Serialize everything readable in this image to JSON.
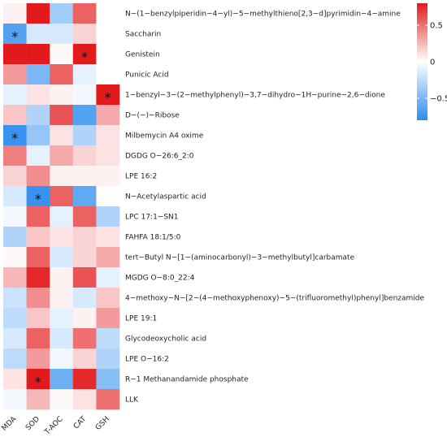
{
  "chart_data": {
    "type": "heatmap",
    "title": "",
    "xlabel": "",
    "ylabel": "",
    "columns": [
      "MDA",
      "SOD",
      "T-AOC",
      "CAT",
      "GSH"
    ],
    "rows": [
      "N−(1−benzylpiperidin−4−yl)−5−methylthieno[2,3−d]pyrimidin−4−amine",
      "Saccharin",
      "Genistein",
      "Punicic Acid",
      "1−benzyl−3−(2−methylphenyl)−3,7−dihydro−1H−purine−2,6−dione",
      "D−(−)−Ribose",
      "Milbemycin A4 oxime",
      "DGDG O−26:6_2:0",
      "LPE 16:2",
      "N−Acetylaspartic acid",
      "LPC 17:1−SN1",
      "FAHFA 18:1/5:0",
      "tert−Butyl N−[1−(aminocarbonyl)−3−methylbutyl]carbamate",
      "MGDG O−8:0_22:4",
      "4−methoxy−N−[2−(4−methoxyphenoxy)−5−(trifluoromethyl)phenyl]benzamide",
      "LPE 19:1",
      "Glycodeoxycholic acid",
      "LPE O−16:2",
      "R−1 Methanandamide phosphate",
      "LLK"
    ],
    "values": [
      [
        0.05,
        0.85,
        -0.35,
        0.55,
        0.0
      ],
      [
        -0.65,
        -0.15,
        -0.15,
        0.15,
        0.0
      ],
      [
        0.85,
        0.8,
        0.02,
        0.9,
        0.0
      ],
      [
        0.35,
        -0.5,
        0.55,
        -0.1,
        0.0
      ],
      [
        -0.1,
        0.1,
        0.05,
        -0.05,
        0.9
      ],
      [
        0.2,
        -0.3,
        0.6,
        -0.65,
        0.3
      ],
      [
        -0.75,
        -0.4,
        0.1,
        -0.3,
        0.1
      ],
      [
        0.45,
        -0.1,
        0.3,
        0.15,
        0.1
      ],
      [
        0.15,
        0.4,
        0.05,
        0.05,
        0.05
      ],
      [
        -0.15,
        -0.75,
        0.55,
        -0.6,
        0.0
      ],
      [
        -0.05,
        0.55,
        -0.1,
        0.55,
        -0.3
      ],
      [
        -0.3,
        0.2,
        0.1,
        0.15,
        0.1
      ],
      [
        0.02,
        0.55,
        -0.15,
        0.15,
        0.3
      ],
      [
        0.25,
        0.75,
        0.05,
        0.6,
        -0.1
      ],
      [
        -0.2,
        0.4,
        0.05,
        -0.15,
        0.2
      ],
      [
        -0.25,
        0.2,
        -0.1,
        0.05,
        0.35
      ],
      [
        -0.15,
        0.55,
        -0.15,
        0.5,
        -0.25
      ],
      [
        -0.25,
        0.35,
        -0.05,
        0.15,
        -0.3
      ],
      [
        0.1,
        0.9,
        -0.55,
        0.75,
        -0.45
      ],
      [
        -0.05,
        0.25,
        0.02,
        0.1,
        0.5
      ]
    ],
    "significance": [
      [
        1,
        0
      ],
      [
        4,
        4
      ],
      [
        2,
        3
      ],
      [
        6,
        0
      ],
      [
        9,
        1
      ],
      [
        18,
        1
      ]
    ],
    "significance_marker": "*",
    "color_scale": {
      "low": "#2b8cef",
      "mid": "#ffffff",
      "high": "#e31a1c",
      "min": -0.8,
      "max": 0.8,
      "ticks": [
        {
          "value": 0.5,
          "label": "0.5"
        },
        {
          "value": 0.0,
          "label": "0"
        },
        {
          "value": -0.5,
          "label": "−0.5"
        }
      ]
    },
    "grid": false,
    "legend_position": "right"
  }
}
